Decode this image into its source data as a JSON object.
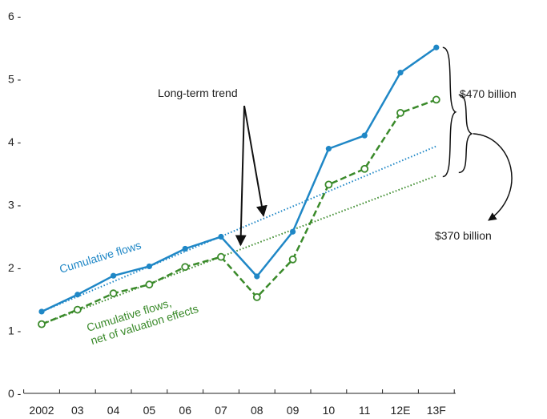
{
  "chart_data": {
    "type": "line",
    "title": "",
    "xlabel": "",
    "ylabel": "",
    "categories": [
      "2002",
      "03",
      "04",
      "05",
      "06",
      "07",
      "08",
      "09",
      "10",
      "11",
      "12E",
      "13F"
    ],
    "ylim": [
      0,
      6
    ],
    "yticks": [
      0,
      1,
      2,
      3,
      4,
      5,
      6
    ],
    "grid": false,
    "series": [
      {
        "name": "Cumulative flows",
        "color": "#1f87c6",
        "style": "solid",
        "marker": "filled-dot",
        "values": [
          1.3,
          1.57,
          1.87,
          2.02,
          2.3,
          2.49,
          1.86,
          2.57,
          3.89,
          4.1,
          5.1,
          5.5
        ]
      },
      {
        "name": "Cumulative flows,\nnet of valuation effects",
        "color": "#3a8a2a",
        "style": "dashed",
        "marker": "open-circle",
        "values": [
          1.1,
          1.33,
          1.59,
          1.73,
          2.01,
          2.17,
          1.53,
          2.13,
          3.32,
          3.57,
          4.46,
          4.67
        ]
      }
    ],
    "trends": [
      {
        "series": "Cumulative flows",
        "color": "#1f87c6",
        "from": [
          0,
          1.3
        ],
        "to": [
          11,
          3.93
        ]
      },
      {
        "series": "Cumulative flows,\nnet of valuation effects",
        "color": "#3a8a2a",
        "from": [
          0,
          1.1
        ],
        "to": [
          11,
          3.46
        ]
      }
    ],
    "annotations": {
      "trend_label": "Long-term trend",
      "gap_blue": "$470 billion",
      "gap_green": "$370 billion"
    }
  }
}
